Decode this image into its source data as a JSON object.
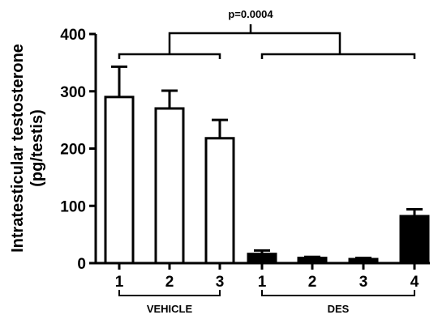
{
  "chart_data": {
    "type": "bar",
    "ylabel": "Intratesticular testosterone",
    "ylabel_unit": "(pg/testis)",
    "ylim": [
      0,
      400
    ],
    "yticks": [
      0,
      100,
      200,
      300,
      400
    ],
    "categories": [
      "1",
      "2",
      "3",
      "1",
      "2",
      "3",
      "4"
    ],
    "groups": [
      {
        "label": "VEHICLE",
        "categories": [
          "1",
          "2",
          "3"
        ],
        "values": [
          290,
          270,
          218
        ],
        "errors": [
          53,
          31,
          32
        ],
        "fill": "#ffffff"
      },
      {
        "label": "DES",
        "categories": [
          "1",
          "2",
          "3",
          "4"
        ],
        "values": [
          16,
          9,
          7,
          82
        ],
        "errors": [
          6,
          2,
          2,
          12
        ],
        "fill": "#000000"
      }
    ],
    "annotation": "p=0.0004",
    "grid": false,
    "colors": {
      "vehicle_bar": "#ffffff",
      "des_bar": "#000000",
      "stroke": "#000000"
    }
  }
}
